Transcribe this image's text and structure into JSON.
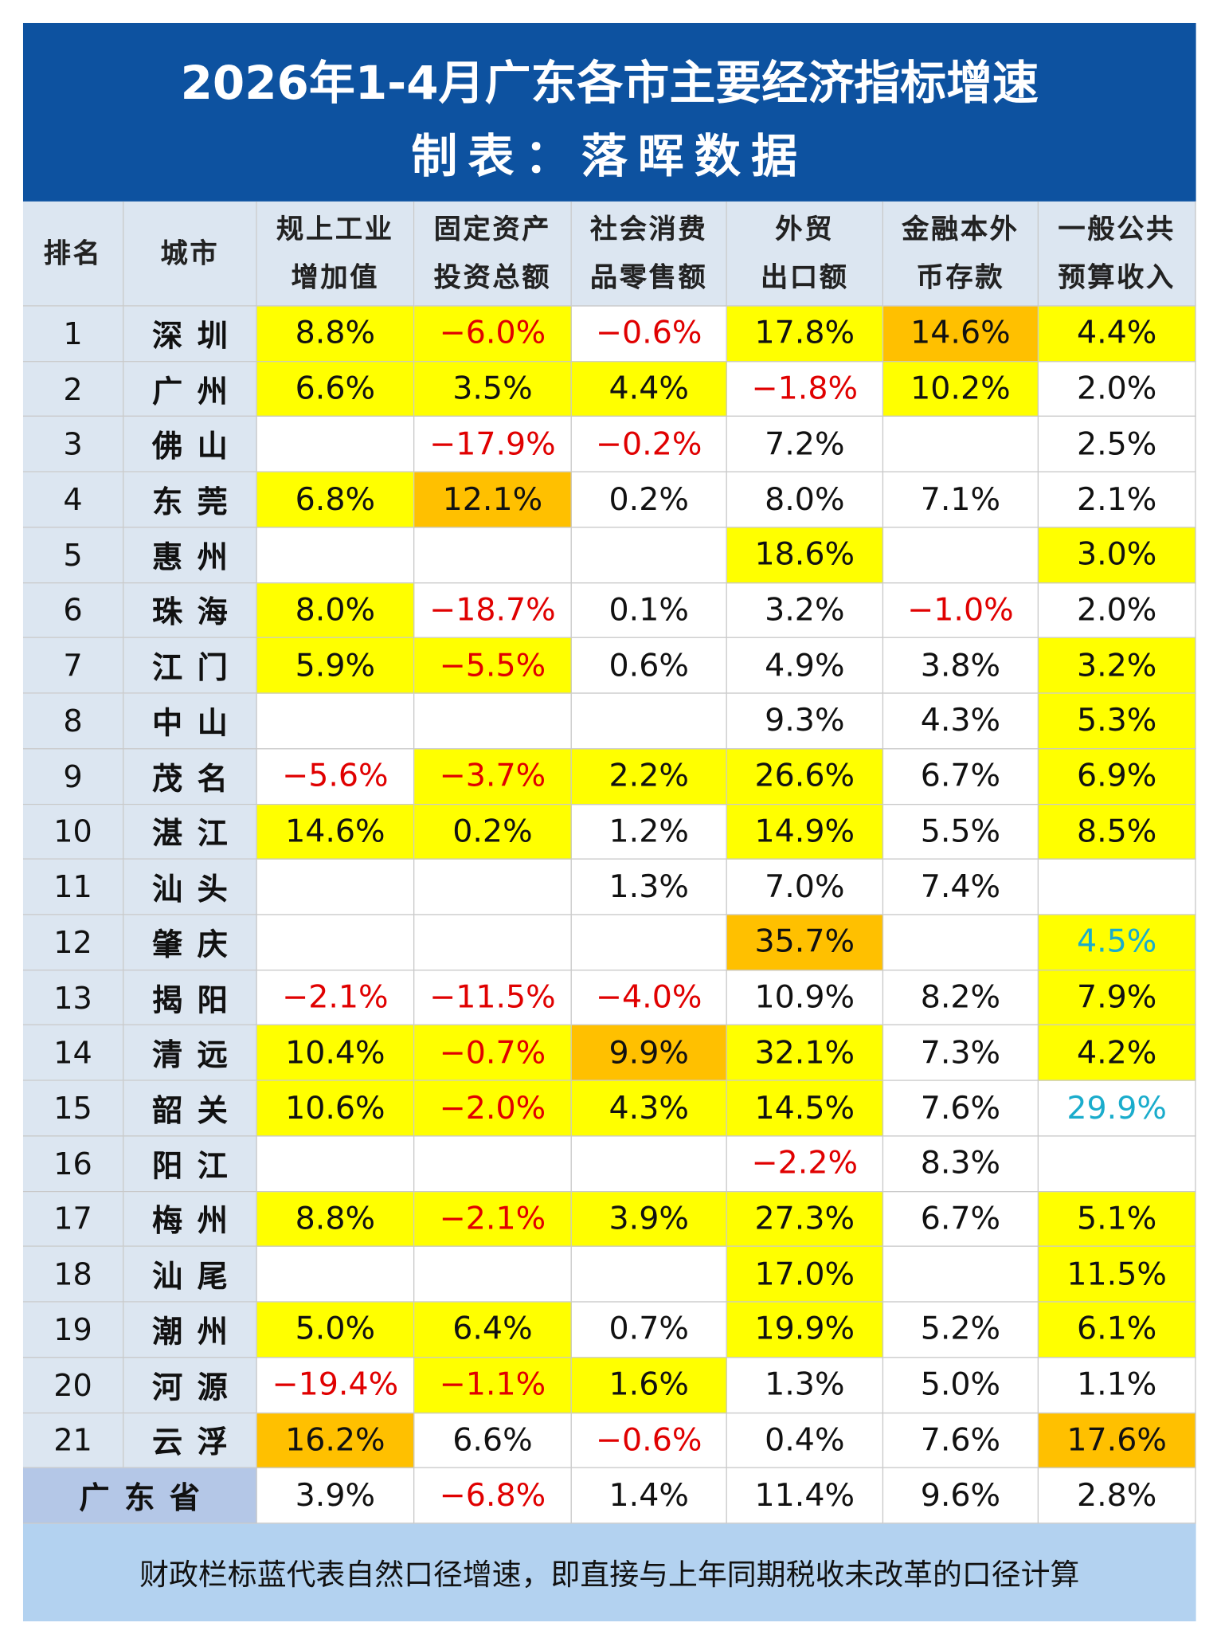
{
  "title": [
    "2026年1-4月广东各市主要经济指标增速",
    "制表：落晖数据"
  ],
  "header": {
    "rank": "排名",
    "city": "城市",
    "columns": [
      [
        "规上工业",
        "增加值"
      ],
      [
        "固定资产",
        "投资总额"
      ],
      [
        "社会消费",
        "品零售额"
      ],
      [
        "外贸",
        "出口额"
      ],
      [
        "金融本外",
        "币存款"
      ],
      [
        "一般公共",
        "预算收入"
      ]
    ]
  },
  "rows": [
    {
      "rank": 1,
      "city": "深圳",
      "cells": [
        {
          "text": "8.8%",
          "bg": "#ffff00"
        },
        {
          "text": "−6.0%",
          "bg": "#ffff00",
          "color": "#e00000"
        },
        {
          "text": "−0.6%",
          "color": "#e00000"
        },
        {
          "text": "17.8%",
          "bg": "#ffff00"
        },
        {
          "text": "14.6%",
          "bg": "#ffc000"
        },
        {
          "text": "4.4%",
          "bg": "#ffff00"
        }
      ]
    },
    {
      "rank": 2,
      "city": "广州",
      "cells": [
        {
          "text": "6.6%",
          "bg": "#ffff00"
        },
        {
          "text": "3.5%",
          "bg": "#ffff00"
        },
        {
          "text": "4.4%",
          "bg": "#ffff00"
        },
        {
          "text": "−1.8%",
          "color": "#e00000"
        },
        {
          "text": "10.2%",
          "bg": "#ffff00"
        },
        {
          "text": "2.0%"
        }
      ]
    },
    {
      "rank": 3,
      "city": "佛山",
      "cells": [
        null,
        {
          "text": "−17.9%",
          "color": "#e00000"
        },
        {
          "text": "−0.2%",
          "color": "#e00000"
        },
        {
          "text": "7.2%"
        },
        null,
        {
          "text": "2.5%"
        }
      ]
    },
    {
      "rank": 4,
      "city": "东莞",
      "cells": [
        {
          "text": "6.8%",
          "bg": "#ffff00"
        },
        {
          "text": "12.1%",
          "bg": "#ffc000"
        },
        {
          "text": "0.2%"
        },
        {
          "text": "8.0%"
        },
        {
          "text": "7.1%"
        },
        {
          "text": "2.1%"
        }
      ]
    },
    {
      "rank": 5,
      "city": "惠州",
      "cells": [
        null,
        null,
        null,
        {
          "text": "18.6%",
          "bg": "#ffff00"
        },
        null,
        {
          "text": "3.0%",
          "bg": "#ffff00"
        }
      ]
    },
    {
      "rank": 6,
      "city": "珠海",
      "cells": [
        {
          "text": "8.0%",
          "bg": "#ffff00"
        },
        {
          "text": "−18.7%",
          "color": "#e00000"
        },
        {
          "text": "0.1%"
        },
        {
          "text": "3.2%"
        },
        {
          "text": "−1.0%",
          "color": "#e00000"
        },
        {
          "text": "2.0%"
        }
      ]
    },
    {
      "rank": 7,
      "city": "江门",
      "cells": [
        {
          "text": "5.9%",
          "bg": "#ffff00"
        },
        {
          "text": "−5.5%",
          "bg": "#ffff00",
          "color": "#e00000"
        },
        {
          "text": "0.6%"
        },
        {
          "text": "4.9%"
        },
        {
          "text": "3.8%"
        },
        {
          "text": "3.2%",
          "bg": "#ffff00"
        }
      ]
    },
    {
      "rank": 8,
      "city": "中山",
      "cells": [
        null,
        null,
        null,
        {
          "text": "9.3%"
        },
        {
          "text": "4.3%"
        },
        {
          "text": "5.3%",
          "bg": "#ffff00"
        }
      ]
    },
    {
      "rank": 9,
      "city": "茂名",
      "cells": [
        {
          "text": "−5.6%",
          "color": "#e00000"
        },
        {
          "text": "−3.7%",
          "bg": "#ffff00",
          "color": "#e00000"
        },
        {
          "text": "2.2%",
          "bg": "#ffff00"
        },
        {
          "text": "26.6%",
          "bg": "#ffff00"
        },
        {
          "text": "6.7%"
        },
        {
          "text": "6.9%",
          "bg": "#ffff00"
        }
      ]
    },
    {
      "rank": 10,
      "city": "湛江",
      "cells": [
        {
          "text": "14.6%",
          "bg": "#ffff00"
        },
        {
          "text": "0.2%",
          "bg": "#ffff00"
        },
        {
          "text": "1.2%"
        },
        {
          "text": "14.9%",
          "bg": "#ffff00"
        },
        {
          "text": "5.5%"
        },
        {
          "text": "8.5%",
          "bg": "#ffff00"
        }
      ]
    },
    {
      "rank": 11,
      "city": "汕头",
      "cells": [
        null,
        null,
        {
          "text": "1.3%"
        },
        {
          "text": "7.0%"
        },
        {
          "text": "7.4%"
        },
        null
      ]
    },
    {
      "rank": 12,
      "city": "肇庆",
      "cells": [
        null,
        null,
        null,
        {
          "text": "35.7%",
          "bg": "#ffc000"
        },
        null,
        {
          "text": "4.5%",
          "bg": "#ffff00",
          "color": "#1aaccc"
        }
      ]
    },
    {
      "rank": 13,
      "city": "揭阳",
      "cells": [
        {
          "text": "−2.1%",
          "color": "#e00000"
        },
        {
          "text": "−11.5%",
          "color": "#e00000"
        },
        {
          "text": "−4.0%",
          "color": "#e00000"
        },
        {
          "text": "10.9%"
        },
        {
          "text": "8.2%"
        },
        {
          "text": "7.9%",
          "bg": "#ffff00"
        }
      ]
    },
    {
      "rank": 14,
      "city": "清远",
      "cells": [
        {
          "text": "10.4%",
          "bg": "#ffff00"
        },
        {
          "text": "−0.7%",
          "bg": "#ffff00",
          "color": "#e00000"
        },
        {
          "text": "9.9%",
          "bg": "#ffc000"
        },
        {
          "text": "32.1%",
          "bg": "#ffff00"
        },
        {
          "text": "7.3%"
        },
        {
          "text": "4.2%",
          "bg": "#ffff00"
        }
      ]
    },
    {
      "rank": 15,
      "city": "韶关",
      "cells": [
        {
          "text": "10.6%",
          "bg": "#ffff00"
        },
        {
          "text": "−2.0%",
          "bg": "#ffff00",
          "color": "#e00000"
        },
        {
          "text": "4.3%",
          "bg": "#ffff00"
        },
        {
          "text": "14.5%",
          "bg": "#ffff00"
        },
        {
          "text": "7.6%"
        },
        {
          "text": "29.9%",
          "color": "#1aaccc"
        }
      ]
    },
    {
      "rank": 16,
      "city": "阳江",
      "cells": [
        null,
        null,
        null,
        {
          "text": "−2.2%",
          "color": "#e00000"
        },
        {
          "text": "8.3%"
        },
        null
      ]
    },
    {
      "rank": 17,
      "city": "梅州",
      "cells": [
        {
          "text": "8.8%",
          "bg": "#ffff00"
        },
        {
          "text": "−2.1%",
          "bg": "#ffff00",
          "color": "#e00000"
        },
        {
          "text": "3.9%",
          "bg": "#ffff00"
        },
        {
          "text": "27.3%",
          "bg": "#ffff00"
        },
        {
          "text": "6.7%"
        },
        {
          "text": "5.1%",
          "bg": "#ffff00"
        }
      ]
    },
    {
      "rank": 18,
      "city": "汕尾",
      "cells": [
        null,
        null,
        null,
        {
          "text": "17.0%",
          "bg": "#ffff00"
        },
        null,
        {
          "text": "11.5%",
          "bg": "#ffff00"
        }
      ]
    },
    {
      "rank": 19,
      "city": "潮州",
      "cells": [
        {
          "text": "5.0%",
          "bg": "#ffff00"
        },
        {
          "text": "6.4%",
          "bg": "#ffff00"
        },
        {
          "text": "0.7%"
        },
        {
          "text": "19.9%",
          "bg": "#ffff00"
        },
        {
          "text": "5.2%"
        },
        {
          "text": "6.1%",
          "bg": "#ffff00"
        }
      ]
    },
    {
      "rank": 20,
      "city": "河源",
      "cells": [
        {
          "text": "−19.4%",
          "color": "#e00000"
        },
        {
          "text": "−1.1%",
          "bg": "#ffff00",
          "color": "#e00000"
        },
        {
          "text": "1.6%",
          "bg": "#ffff00"
        },
        {
          "text": "1.3%"
        },
        {
          "text": "5.0%"
        },
        {
          "text": "1.1%"
        }
      ]
    },
    {
      "rank": 21,
      "city": "云浮",
      "cells": [
        {
          "text": "16.2%",
          "bg": "#ffc000"
        },
        {
          "text": "6.6%"
        },
        {
          "text": "−0.6%",
          "color": "#e00000"
        },
        {
          "text": "0.4%"
        },
        {
          "text": "7.6%"
        },
        {
          "text": "17.6%",
          "bg": "#ffc000"
        }
      ]
    }
  ],
  "total": {
    "label": "广东省",
    "cells": [
      {
        "text": "3.9%"
      },
      {
        "text": "−6.8%",
        "color": "#e00000"
      },
      {
        "text": "1.4%"
      },
      {
        "text": "11.4%"
      },
      {
        "text": "9.6%"
      },
      {
        "text": "2.8%"
      }
    ]
  },
  "footer": "财政栏标蓝代表自然口径增速，即直接与上年同期税收未改革的口径计算"
}
